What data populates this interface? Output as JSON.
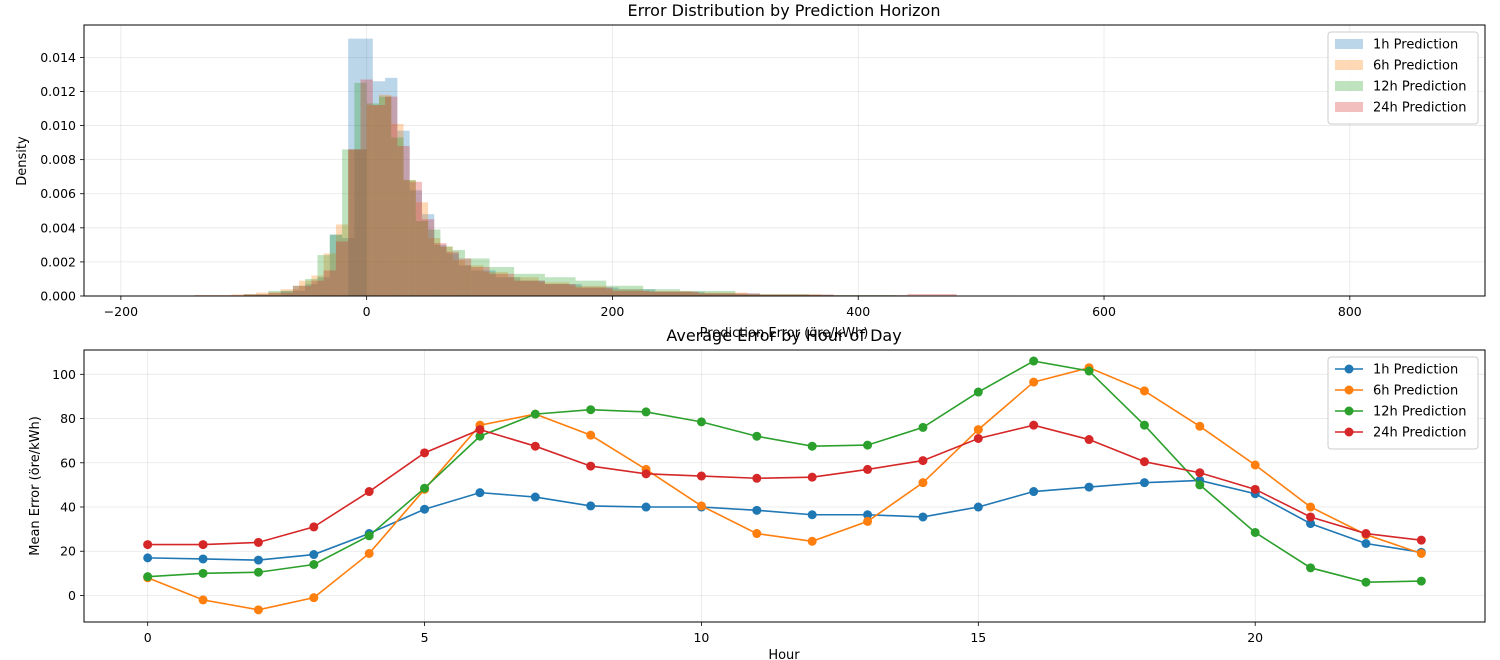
{
  "chart_data": [
    {
      "type": "histogram",
      "title": "Error Distribution by Prediction Horizon",
      "xlabel": "Prediction Error (öre/kWh)",
      "ylabel": "Density",
      "xlim": [
        -230,
        910
      ],
      "ylim": [
        0,
        0.0159
      ],
      "xticks": [
        -200,
        0,
        200,
        400,
        600,
        800
      ],
      "yticks": [
        0.0,
        0.002,
        0.004,
        0.006,
        0.008,
        0.01,
        0.012,
        0.014
      ],
      "grid": true,
      "legend_position": "top-right",
      "series": [
        {
          "name": "1h Prediction",
          "color": "#1f77b4",
          "bins": [
            [
              -90,
              -70,
              5e-05
            ],
            [
              -70,
              -50,
              0.0003
            ],
            [
              -50,
              -40,
              0.0007
            ],
            [
              -40,
              -30,
              0.0011
            ],
            [
              -30,
              -20,
              0.0036
            ],
            [
              -20,
              -10,
              0.0034
            ],
            [
              -10,
              0,
              0.0086
            ],
            [
              -15,
              5,
              0.0151
            ],
            [
              5,
              15,
              0.0126
            ],
            [
              15,
              25,
              0.0128
            ],
            [
              25,
              35,
              0.0097
            ],
            [
              35,
              45,
              0.0062
            ],
            [
              45,
              55,
              0.0048
            ],
            [
              55,
              65,
              0.003
            ],
            [
              65,
              75,
              0.0025
            ],
            [
              75,
              85,
              0.0018
            ],
            [
              85,
              105,
              0.0015
            ],
            [
              105,
              125,
              0.0011
            ],
            [
              125,
              145,
              0.0009
            ],
            [
              145,
              175,
              0.0007
            ],
            [
              175,
              205,
              0.0005
            ],
            [
              205,
              235,
              0.0004
            ],
            [
              235,
              275,
              0.00025
            ],
            [
              275,
              320,
              0.00015
            ],
            [
              320,
              380,
              8e-05
            ],
            [
              380,
              440,
              4e-05
            ],
            [
              440,
              530,
              2e-05
            ]
          ]
        },
        {
          "name": "6h Prediction",
          "color": "#ff7f0e",
          "bins": [
            [
              -140,
              -110,
              5e-05
            ],
            [
              -110,
              -90,
              0.0001
            ],
            [
              -90,
              -70,
              0.0002
            ],
            [
              -70,
              -55,
              0.0004
            ],
            [
              -55,
              -45,
              0.0009
            ],
            [
              -45,
              -35,
              0.0012
            ],
            [
              -35,
              -25,
              0.0025
            ],
            [
              -25,
              -15,
              0.0042
            ],
            [
              -15,
              0,
              0.0086
            ],
            [
              0,
              10,
              0.0112
            ],
            [
              10,
              20,
              0.0118
            ],
            [
              20,
              30,
              0.0101
            ],
            [
              30,
              40,
              0.0068
            ],
            [
              40,
              50,
              0.0055
            ],
            [
              50,
              60,
              0.0034
            ],
            [
              60,
              70,
              0.0029
            ],
            [
              70,
              80,
              0.0021
            ],
            [
              80,
              95,
              0.0018
            ],
            [
              95,
              115,
              0.0014
            ],
            [
              115,
              140,
              0.0011
            ],
            [
              140,
              165,
              0.0008
            ],
            [
              165,
              195,
              0.0006
            ],
            [
              195,
              225,
              0.0004
            ],
            [
              225,
              265,
              0.00028
            ],
            [
              265,
              310,
              0.0002
            ],
            [
              310,
              370,
              0.0001
            ],
            [
              370,
              440,
              4e-05
            ],
            [
              440,
              520,
              2e-05
            ]
          ]
        },
        {
          "name": "12h Prediction",
          "color": "#2ca02c",
          "bins": [
            [
              -100,
              -80,
              0.0001
            ],
            [
              -80,
              -60,
              0.0003
            ],
            [
              -60,
              -50,
              0.0006
            ],
            [
              -50,
              -40,
              0.001
            ],
            [
              -40,
              -30,
              0.0024
            ],
            [
              -30,
              -20,
              0.0036
            ],
            [
              -20,
              -10,
              0.0086
            ],
            [
              -10,
              0,
              0.0125
            ],
            [
              0,
              10,
              0.0113
            ],
            [
              10,
              20,
              0.0117
            ],
            [
              20,
              30,
              0.0093
            ],
            [
              30,
              40,
              0.0068
            ],
            [
              40,
              50,
              0.0044
            ],
            [
              50,
              60,
              0.0039
            ],
            [
              60,
              70,
              0.0029
            ],
            [
              70,
              80,
              0.0027
            ],
            [
              80,
              100,
              0.0022
            ],
            [
              100,
              120,
              0.0017
            ],
            [
              120,
              145,
              0.0013
            ],
            [
              145,
              170,
              0.0011
            ],
            [
              170,
              195,
              0.0009
            ],
            [
              195,
              225,
              0.0006
            ],
            [
              225,
              255,
              0.0004
            ],
            [
              255,
              300,
              0.0003
            ],
            [
              300,
              360,
              0.0001
            ],
            [
              360,
              430,
              5e-05
            ],
            [
              430,
              530,
              2e-05
            ]
          ]
        },
        {
          "name": "24h Prediction",
          "color": "#d62728",
          "bins": [
            [
              -140,
              -100,
              4e-05
            ],
            [
              -100,
              -80,
              0.0001
            ],
            [
              -80,
              -60,
              0.0002
            ],
            [
              -60,
              -45,
              0.0006
            ],
            [
              -45,
              -35,
              0.0009
            ],
            [
              -35,
              -25,
              0.0015
            ],
            [
              -25,
              -15,
              0.0032
            ],
            [
              -15,
              -5,
              0.0086
            ],
            [
              -5,
              5,
              0.0127
            ],
            [
              5,
              15,
              0.0112
            ],
            [
              15,
              25,
              0.0117
            ],
            [
              25,
              35,
              0.0088
            ],
            [
              35,
              45,
              0.0067
            ],
            [
              45,
              55,
              0.0045
            ],
            [
              55,
              65,
              0.0031
            ],
            [
              65,
              75,
              0.0026
            ],
            [
              75,
              85,
              0.0022
            ],
            [
              85,
              100,
              0.0017
            ],
            [
              100,
              120,
              0.0013
            ],
            [
              120,
              145,
              0.0009
            ],
            [
              145,
              170,
              0.0007
            ],
            [
              170,
              200,
              0.0005
            ],
            [
              200,
              230,
              0.0003
            ],
            [
              230,
              270,
              0.00025
            ],
            [
              270,
              320,
              0.00015
            ],
            [
              320,
              380,
              8e-05
            ],
            [
              380,
              440,
              4e-05
            ],
            [
              440,
              480,
              0.00012
            ],
            [
              480,
              530,
              3e-05
            ]
          ]
        }
      ]
    },
    {
      "type": "line",
      "title": "Average Error by Hour of Day",
      "xlabel": "Hour",
      "ylabel": "Mean Error (öre/kWh)",
      "xlim": [
        -1.15,
        24.15
      ],
      "ylim": [
        -12,
        111
      ],
      "xticks": [
        0,
        5,
        10,
        15,
        20
      ],
      "yticks": [
        0,
        20,
        40,
        60,
        80,
        100
      ],
      "grid": true,
      "legend_position": "top-right",
      "x": [
        0,
        1,
        2,
        3,
        4,
        5,
        6,
        7,
        8,
        9,
        10,
        11,
        12,
        13,
        14,
        15,
        16,
        17,
        18,
        19,
        20,
        21,
        22,
        23
      ],
      "series": [
        {
          "name": "1h Prediction",
          "color": "#1f77b4",
          "values": [
            17,
            16.5,
            16,
            18.5,
            28,
            39,
            46.5,
            44.5,
            40.5,
            40,
            40,
            38.5,
            36.5,
            36.5,
            35.5,
            40,
            47,
            49,
            51,
            52,
            46,
            32.5,
            23.5,
            19.5
          ]
        },
        {
          "name": "6h Prediction",
          "color": "#ff7f0e",
          "values": [
            8,
            -2,
            -6.5,
            -1,
            19,
            48,
            77,
            82,
            72.5,
            57,
            40.5,
            28,
            24.5,
            33.5,
            51,
            75,
            96.5,
            103,
            92.5,
            76.5,
            59,
            40,
            27.5,
            19
          ]
        },
        {
          "name": "12h Prediction",
          "color": "#2ca02c",
          "values": [
            8.5,
            10,
            10.5,
            14,
            27,
            48.5,
            72,
            82,
            84,
            83,
            78.5,
            72,
            67.5,
            68,
            76,
            92,
            106,
            101.5,
            77,
            50,
            28.5,
            12.5,
            6,
            6.5
          ]
        },
        {
          "name": "24h Prediction",
          "color": "#d62728",
          "values": [
            23,
            23,
            24,
            31,
            47,
            64.5,
            75,
            67.5,
            58.5,
            55,
            54,
            53,
            53.5,
            57,
            61,
            71,
            77,
            70.5,
            60.5,
            55.5,
            48,
            35.5,
            28,
            25
          ]
        }
      ]
    }
  ]
}
